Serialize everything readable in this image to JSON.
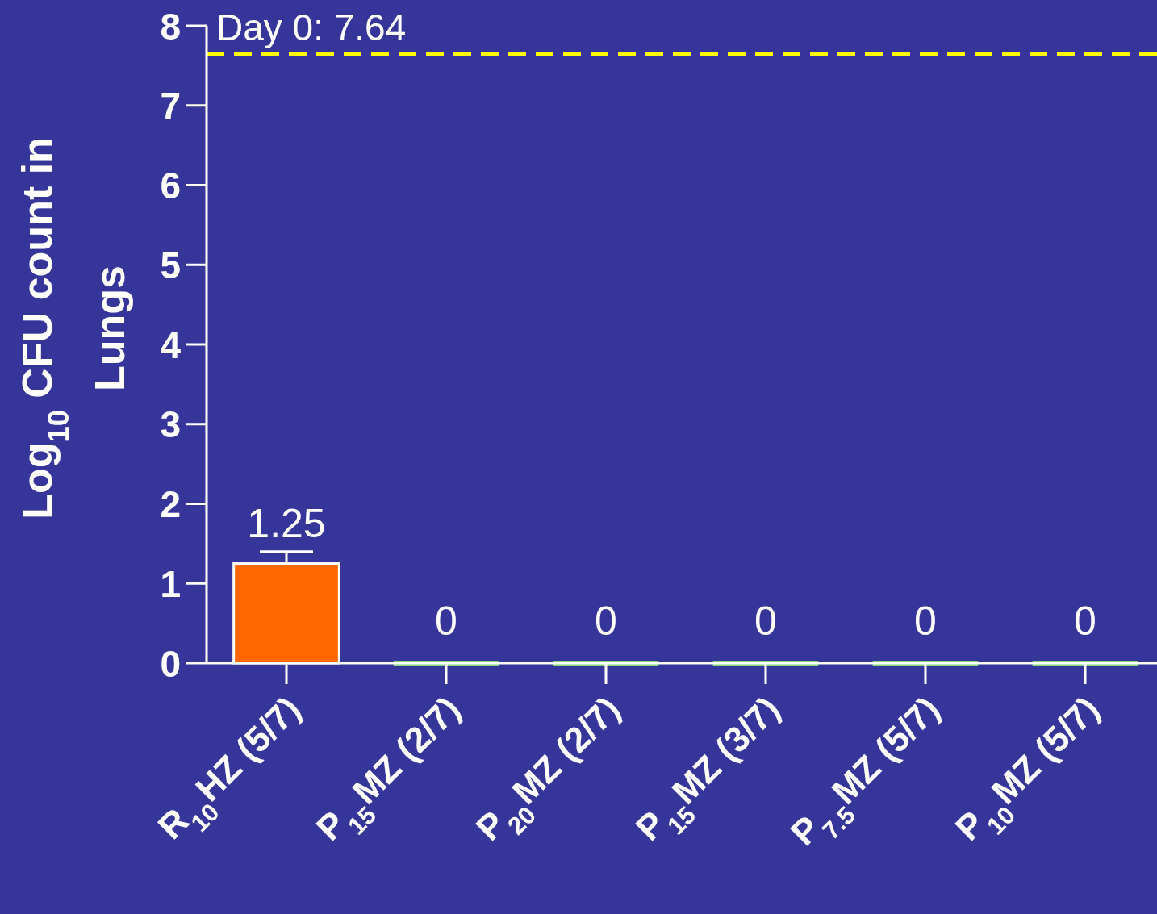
{
  "chart_data": {
    "type": "bar",
    "ylabel": "Log$_{10}$ CFU count in Lungs",
    "categories": [
      "R$_{10}$HZ (5/7)",
      "P$_{15}$MZ (2/7)",
      "P$_{20}$MZ (2/7)",
      "P$_{15}$MZ (3/7)",
      "P$_{7.5}$MZ (5/7)",
      "P$_{10}$MZ (5/7)"
    ],
    "values": [
      1.25,
      0,
      0,
      0,
      0,
      0
    ],
    "colors": [
      "#ff6600",
      "#7fd67f",
      "#7fd67f",
      "#7fd67f",
      "#7fd67f",
      "#7fd67f"
    ],
    "errors": [
      0.15,
      null,
      null,
      null,
      null,
      null
    ],
    "data_labels": true,
    "ylim": [
      0,
      8
    ],
    "yticks": [
      0,
      1,
      2,
      3,
      4,
      5,
      6,
      7,
      8
    ],
    "ref_lines": [
      {
        "axis": "y",
        "value": 7.64,
        "label": "Day 0: 7.64",
        "color": "#ffff00",
        "line_style": "dashed"
      }
    ],
    "grid": false
  }
}
